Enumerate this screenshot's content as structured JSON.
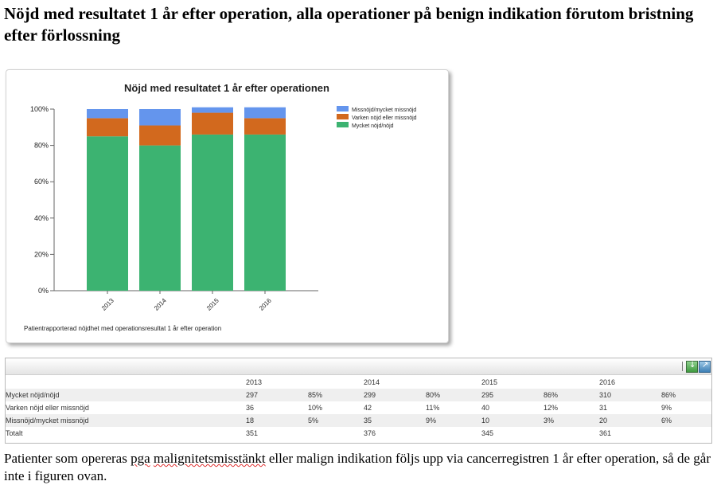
{
  "page": {
    "title": "Nöjd med resultatet 1 år efter operation, alla operationer på benign indikation förutom bristning efter förlossning",
    "footer_part1": "Patienter som opereras ",
    "footer_misspelled1": "pga",
    "footer_space": " ",
    "footer_misspelled2": "malignitetsmisstänkt",
    "footer_part2": " eller malign indikation följs upp via cancerregistren 1 år efter operation, så de går inte i figuren ovan."
  },
  "chart_data": {
    "type": "bar",
    "stacked": true,
    "title": "Nöjd med resultatet 1 år efter operationen",
    "footnote": "Patientrapporterad nöjdhet med operationsresultat 1 år efter operation",
    "categories": [
      "2013",
      "2014",
      "2015",
      "2016"
    ],
    "series": [
      {
        "name": "Mycket nöjd/nöjd",
        "color": "#3cb371",
        "values": [
          85,
          80,
          86,
          86
        ]
      },
      {
        "name": "Varken nöjd eller missnöjd",
        "color": "#d2691e",
        "values": [
          10,
          11,
          12,
          9
        ]
      },
      {
        "name": "Missnöjd/mycket missnöjd",
        "color": "#6495ed",
        "values": [
          5,
          9,
          3,
          6
        ]
      }
    ],
    "legend_order": [
      "Missnöjd/mycket missnöjd",
      "Varken nöjd eller missnöjd",
      "Mycket nöjd/nöjd"
    ],
    "yticks": [
      "0%",
      "20%",
      "40%",
      "60%",
      "80%",
      "100%"
    ],
    "ylim": [
      0,
      100
    ],
    "legend_position": "top-right",
    "grid": false
  },
  "table": {
    "headers": [
      "2013",
      "2014",
      "2015",
      "2016"
    ],
    "rows": [
      {
        "label": "Mycket nöjd/nöjd",
        "cells": [
          "297",
          "85%",
          "299",
          "80%",
          "295",
          "86%",
          "310",
          "86%"
        ]
      },
      {
        "label": "Varken nöjd eller missnöjd",
        "cells": [
          "36",
          "10%",
          "42",
          "11%",
          "40",
          "12%",
          "31",
          "9%"
        ]
      },
      {
        "label": "Missnöjd/mycket missnöjd",
        "cells": [
          "18",
          "5%",
          "35",
          "9%",
          "10",
          "3%",
          "20",
          "6%"
        ]
      },
      {
        "label": "Totalt",
        "cells": [
          "351",
          "",
          "376",
          "",
          "345",
          "",
          "361",
          ""
        ]
      }
    ]
  },
  "toolbar": {
    "excel_icon": "excel-export-icon",
    "export_icon": "export-icon"
  }
}
